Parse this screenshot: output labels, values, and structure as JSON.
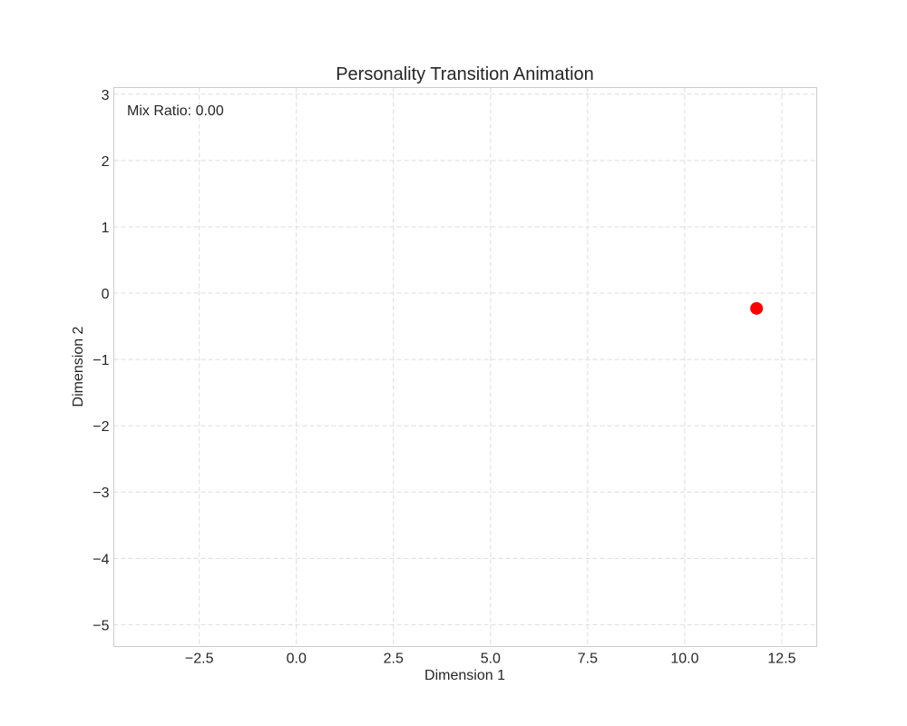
{
  "chart_data": {
    "type": "scatter",
    "title": "Personality Transition Animation",
    "xlabel": "Dimension 1",
    "ylabel": "Dimension 2",
    "xlim": [
      -4.7,
      13.4
    ],
    "ylim": [
      -5.33,
      3.1
    ],
    "x_ticks": [
      -2.5,
      0.0,
      2.5,
      5.0,
      7.5,
      10.0,
      12.5
    ],
    "x_tick_labels": [
      "−2.5",
      "0.0",
      "2.5",
      "5.0",
      "7.5",
      "10.0",
      "12.5"
    ],
    "y_ticks": [
      3,
      2,
      1,
      0,
      -1,
      -2,
      -3,
      -4,
      -5
    ],
    "y_tick_labels": [
      "3",
      "2",
      "1",
      "0",
      "−1",
      "−2",
      "−3",
      "−4",
      "−5"
    ],
    "grid": true,
    "annotation": "Mix Ratio: 0.00",
    "points": [
      {
        "x": 11.85,
        "y": -0.23
      }
    ],
    "point_color": "#ff0000",
    "grid_color": "#dddddd",
    "frame_color": "#cccccc"
  }
}
